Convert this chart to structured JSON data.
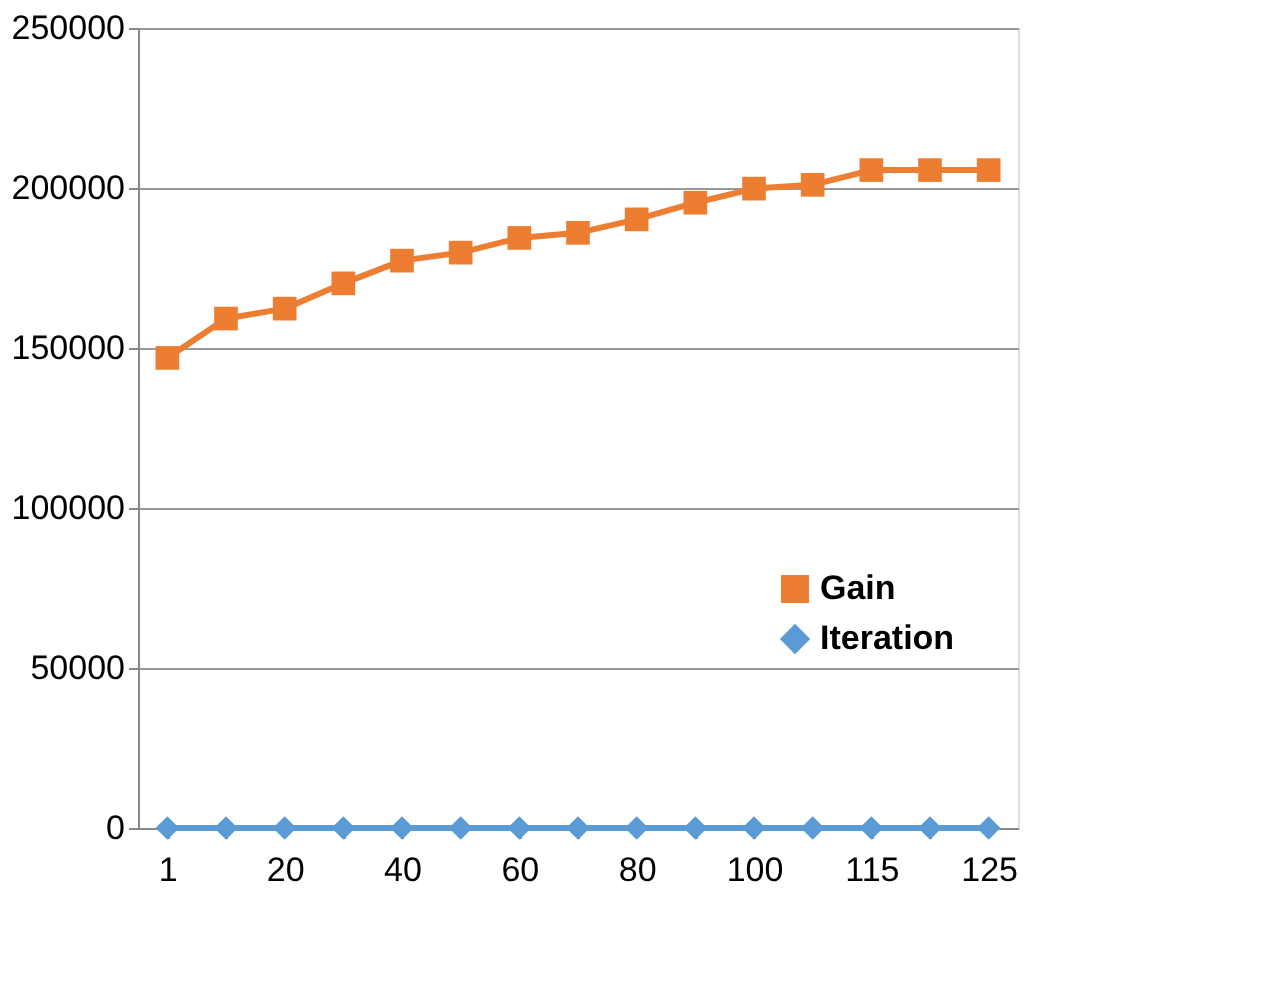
{
  "chart_data": {
    "type": "line",
    "categories": [
      "1",
      null,
      "20",
      null,
      "40",
      null,
      "60",
      null,
      "80",
      null,
      "100",
      null,
      "115",
      null,
      "125"
    ],
    "series": [
      {
        "name": "Gain",
        "color": "#ed7d31",
        "marker": "square",
        "values": [
          146900,
          159200,
          162300,
          170200,
          177300,
          179800,
          184400,
          186000,
          190200,
          195400,
          199800,
          201000,
          205600,
          205600,
          205600
        ]
      },
      {
        "name": "Iteration",
        "color": "#5b9bd5",
        "marker": "diamond",
        "values": [
          0,
          0,
          0,
          0,
          0,
          0,
          0,
          0,
          0,
          0,
          0,
          0,
          0,
          0,
          0
        ]
      }
    ],
    "ylim": [
      0,
      250000
    ],
    "yticks": [
      0,
      50000,
      100000,
      150000,
      200000,
      250000
    ],
    "grid": "y",
    "legend": "right",
    "line_style": "solid"
  }
}
